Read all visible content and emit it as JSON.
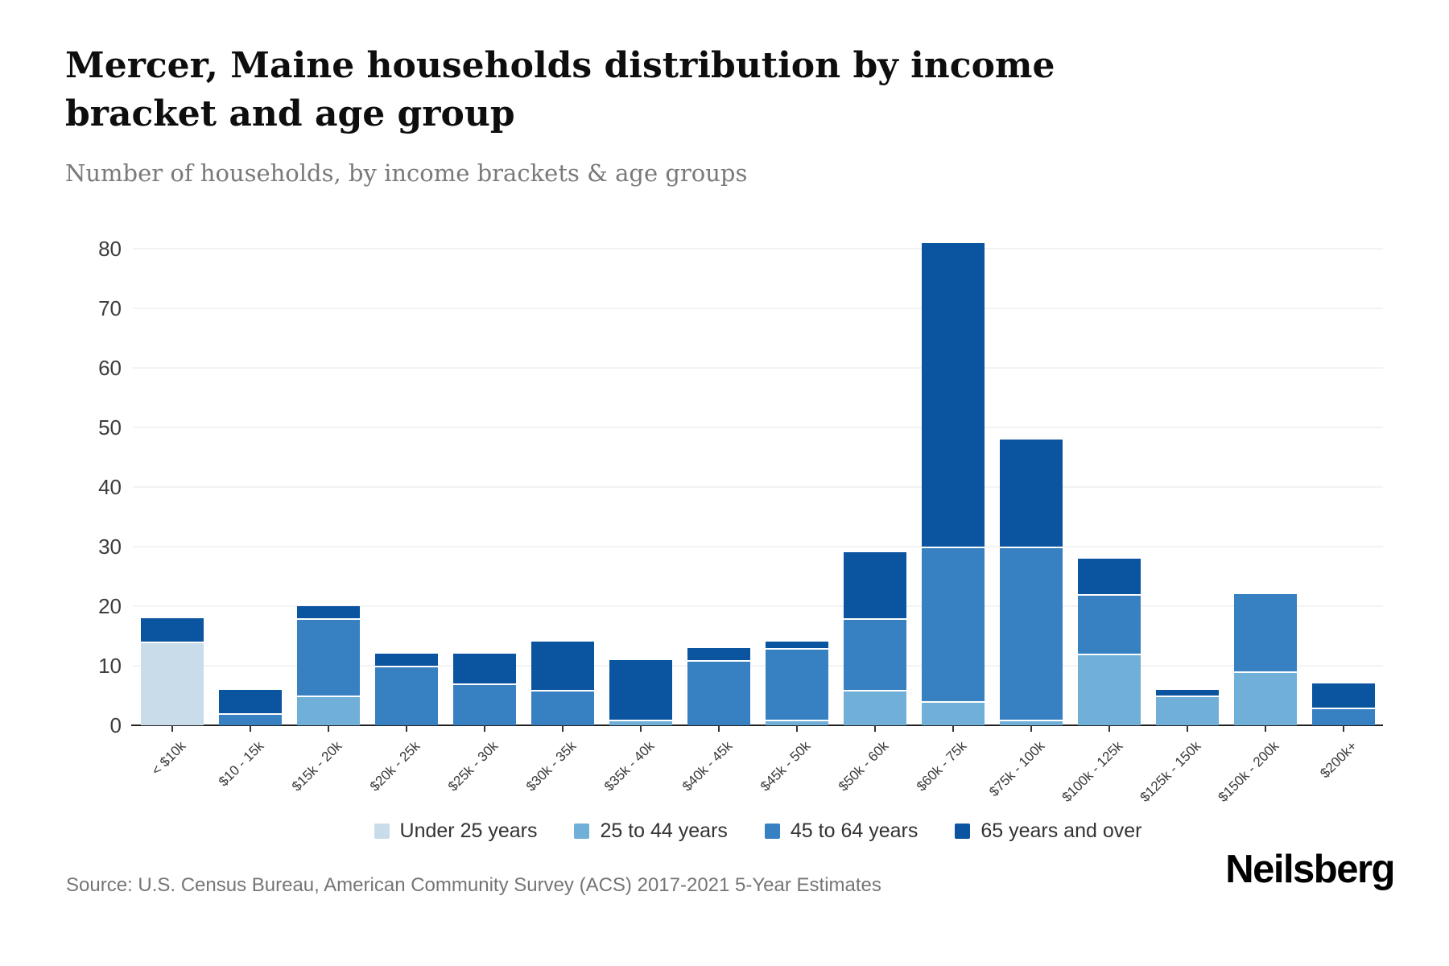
{
  "title": "Mercer, Maine households distribution by income bracket and age group",
  "subtitle": "Number of households, by income brackets & age groups",
  "source": "Source: U.S. Census Bureau, American Community Survey (ACS) 2017-2021 5-Year Estimates",
  "brand": "Neilsberg",
  "colors": {
    "under_25": "#c9dcea",
    "age_25_44": "#6fafd8",
    "age_45_64": "#3780c1",
    "age_65_over": "#0b54a0",
    "gridline": "#f3f3f3",
    "axis_line": "#212121",
    "axis_text": "#3d3d3d",
    "title_text": "#0e0e0e",
    "muted_text": "#757575"
  },
  "chart_data": {
    "type": "bar",
    "stacked": true,
    "title": "Mercer, Maine households distribution by income bracket and age group",
    "subtitle": "Number of households, by income brackets & age groups",
    "xlabel": "",
    "ylabel": "Number of households",
    "ylim": [
      0,
      80
    ],
    "yticks": [
      0,
      10,
      20,
      30,
      40,
      50,
      60,
      70,
      80
    ],
    "grid": true,
    "legend_position": "bottom",
    "categories": [
      "< $10k",
      "$10 - 15k",
      "$15k - 20k",
      "$20k - 25k",
      "$25k - 30k",
      "$30k - 35k",
      "$35k - 40k",
      "$40k - 45k",
      "$45k - 50k",
      "$50k - 60k",
      "$60k - 75k",
      "$75k - 100k",
      "$100k - 125k",
      "$125k - 150k",
      "$150k - 200k",
      "$200k+"
    ],
    "series": [
      {
        "name": "Under 25 years",
        "color": "#c9dcea",
        "values": [
          14,
          0,
          0,
          0,
          0,
          0,
          0,
          0,
          0,
          0,
          0,
          0,
          0,
          0,
          0,
          0
        ]
      },
      {
        "name": "25 to 44 years",
        "color": "#6fafd8",
        "values": [
          0,
          0,
          5,
          0,
          0,
          0,
          1,
          0,
          1,
          6,
          4,
          1,
          12,
          5,
          9,
          0
        ]
      },
      {
        "name": "45 to 64 years",
        "color": "#3780c1",
        "values": [
          0,
          2,
          13,
          10,
          7,
          6,
          0,
          11,
          12,
          12,
          26,
          29,
          10,
          0,
          13,
          3
        ]
      },
      {
        "name": "65 years and over",
        "color": "#0b54a0",
        "values": [
          4,
          4,
          2,
          2,
          5,
          8,
          10,
          2,
          1,
          11,
          51,
          18,
          6,
          1,
          0,
          4
        ]
      }
    ],
    "totals": [
      18,
      6,
      20,
      12,
      12,
      14,
      11,
      13,
      14,
      29,
      81,
      48,
      28,
      6,
      22,
      7
    ]
  }
}
